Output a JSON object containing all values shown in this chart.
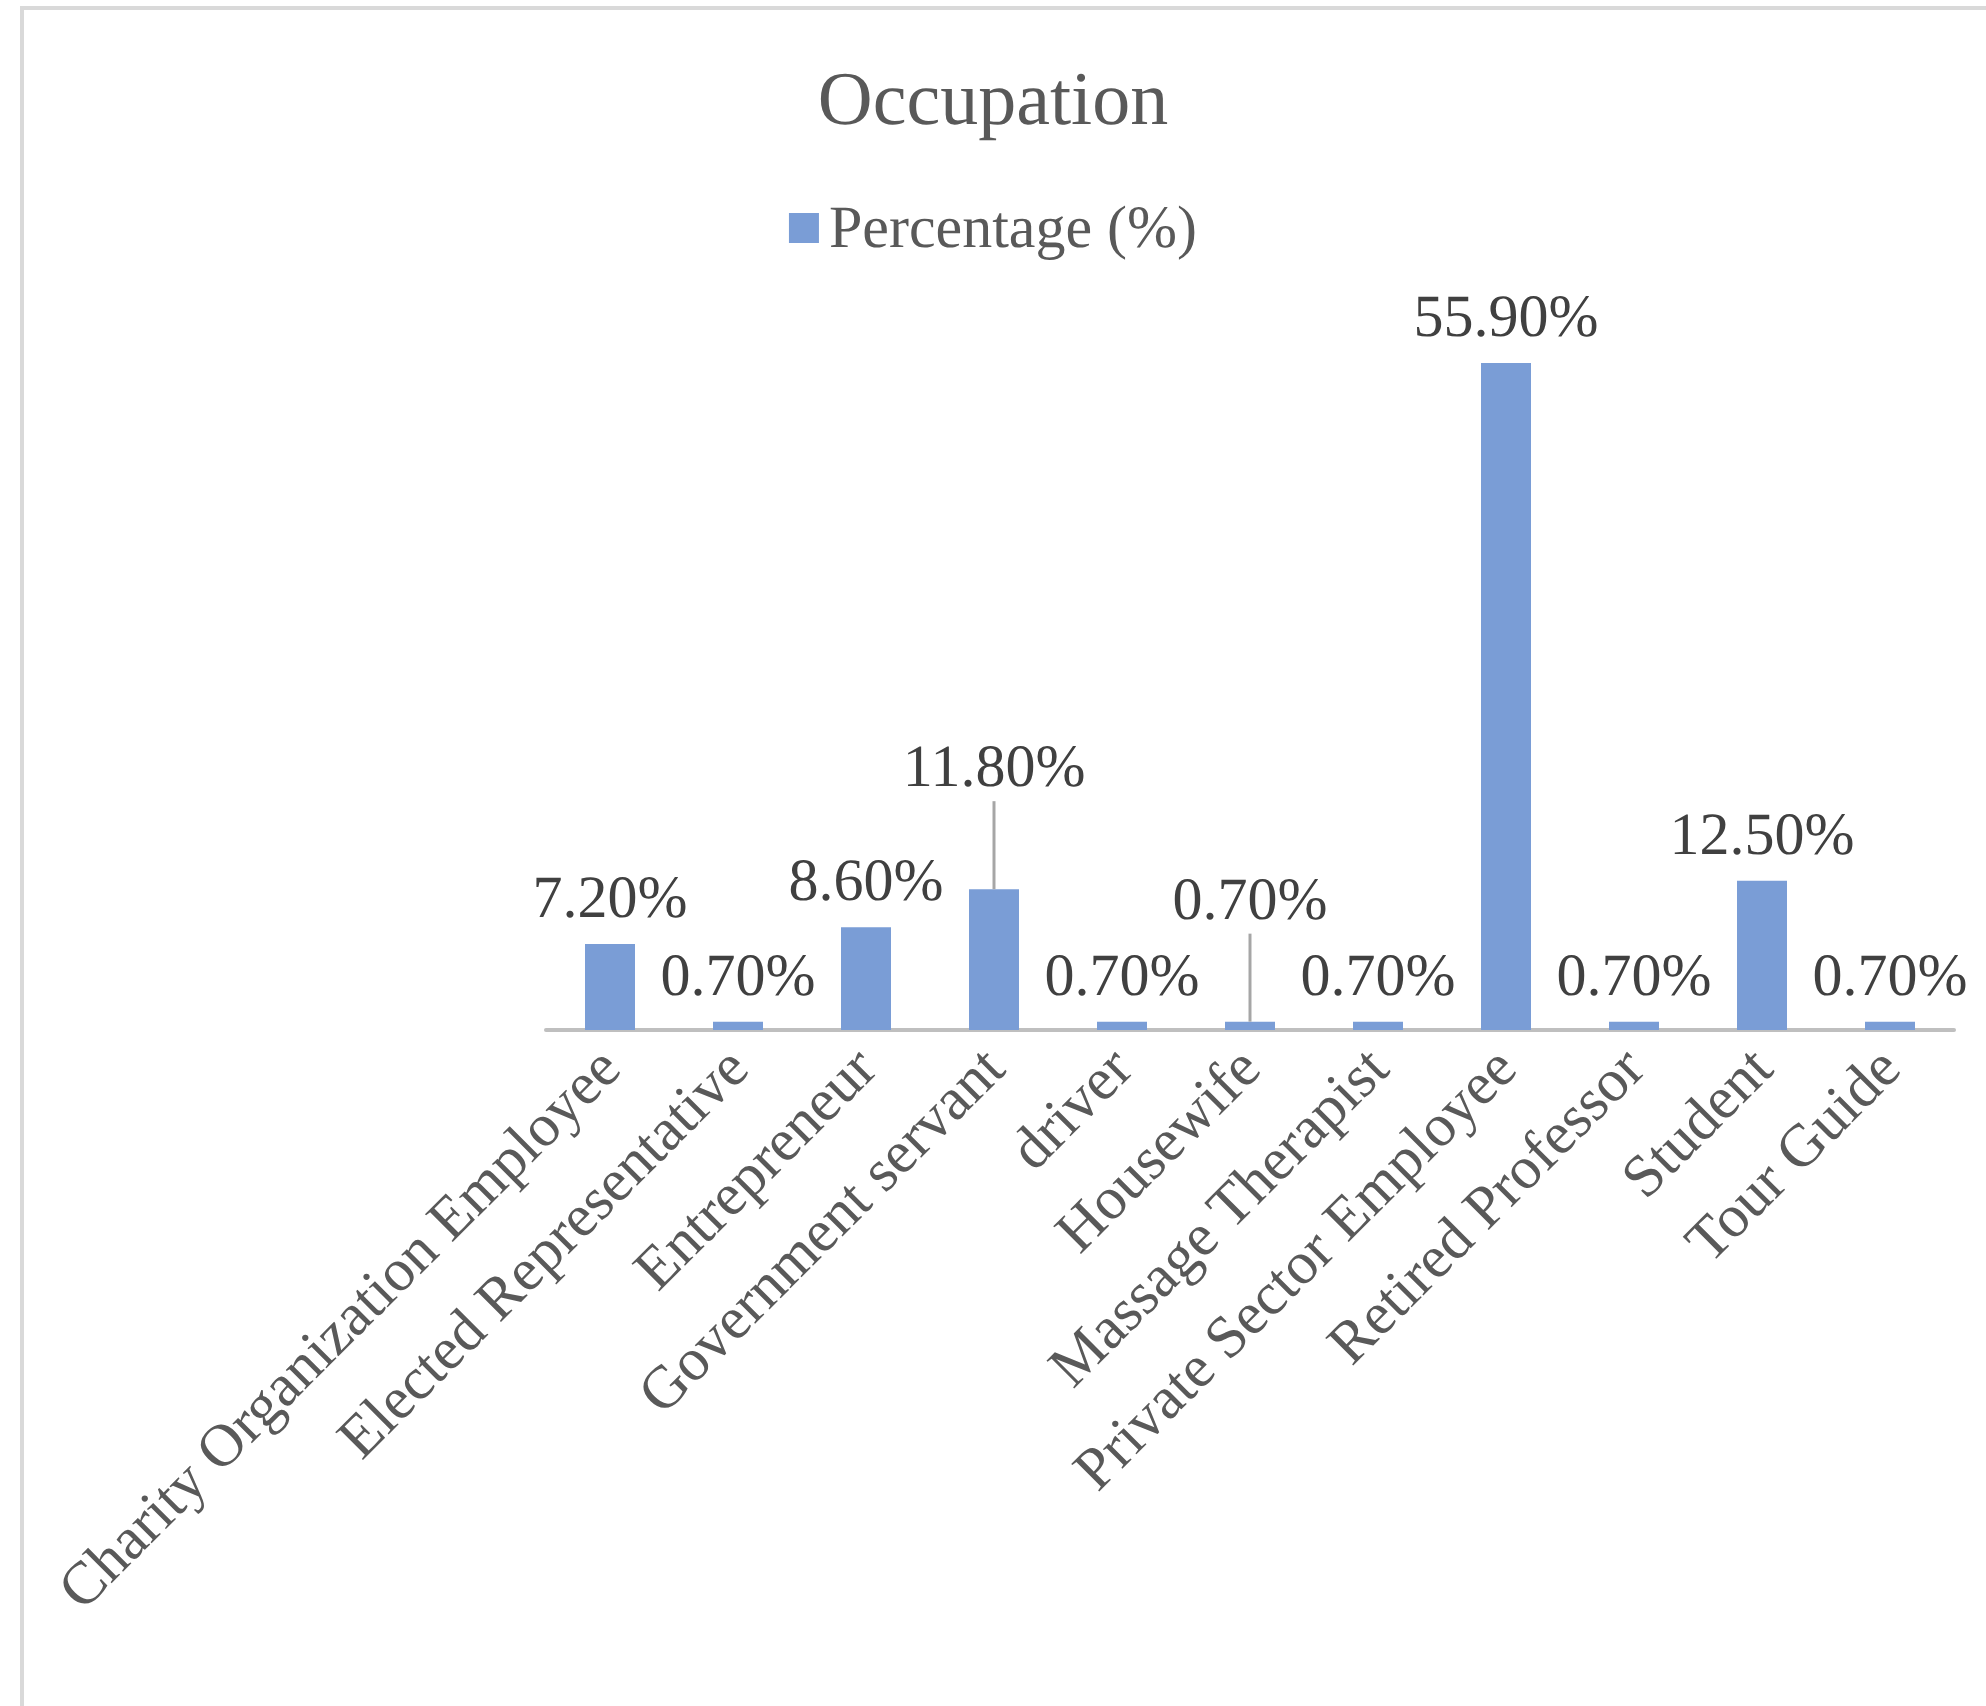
{
  "chart_data": {
    "type": "bar",
    "title": "Occupation",
    "categories": [
      "Charity Organization Employee",
      "Elected Representative",
      "Entrepreneur",
      "Government servant",
      "driver",
      "Housewife",
      "Massage Therapist",
      "Private Sector Employee",
      "Retired Professor",
      "Student",
      "Tour Guide"
    ],
    "series": [
      {
        "name": "Percentage (%)",
        "color": "#7a9dd6",
        "values": [
          7.2,
          0.7,
          8.6,
          11.8,
          0.7,
          0.7,
          0.7,
          55.9,
          0.7,
          12.5,
          0.7
        ],
        "value_labels": [
          "7.20%",
          "0.70%",
          "8.60%",
          "11.80%",
          "0.70%",
          "0.70%",
          "0.70%",
          "55.90%",
          "0.70%",
          "12.50%",
          "0.70%"
        ]
      }
    ],
    "legend": "top",
    "grid": false
  }
}
